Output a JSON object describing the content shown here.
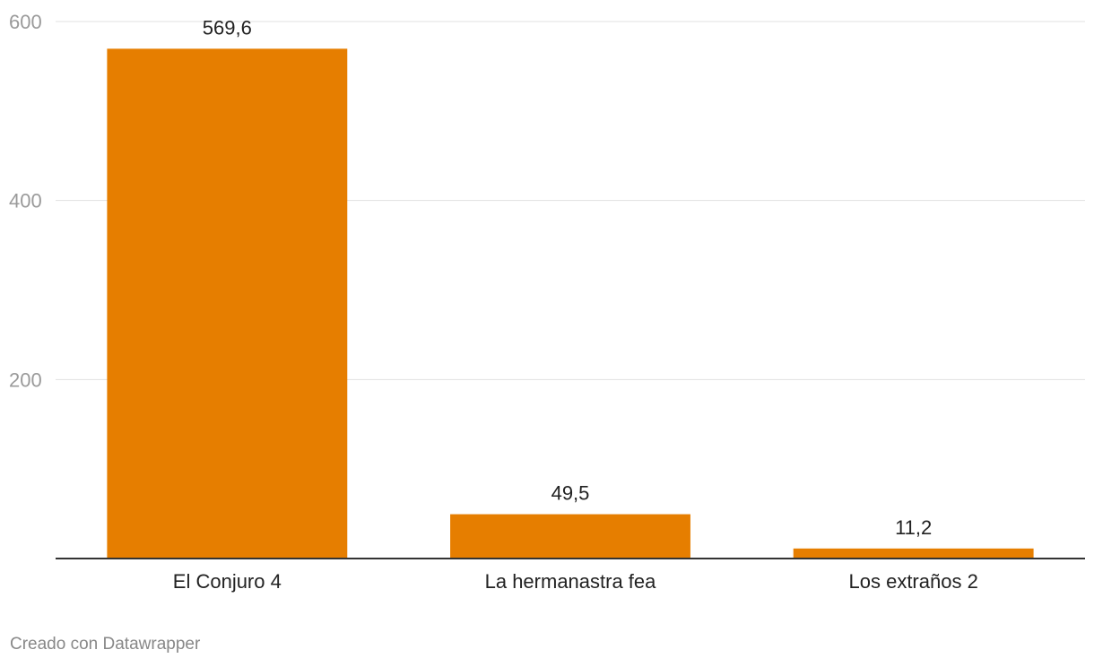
{
  "chart_data": {
    "type": "bar",
    "categories": [
      "El Conjuro 4",
      "La hermanastra fea",
      "Los extraños 2"
    ],
    "values": [
      569.6,
      49.5,
      11.2
    ],
    "value_labels": [
      "569,6",
      "49,5",
      "11,2"
    ],
    "title": "",
    "xlabel": "",
    "ylabel": "",
    "ylim": [
      0,
      600
    ],
    "yticks": [
      200,
      400,
      600
    ],
    "ytick_labels": [
      "200",
      "400",
      "600"
    ],
    "grid": true,
    "bar_color": "#e67e00",
    "grid_color": "#e1e1e1",
    "axis_color": "#333333"
  },
  "footer": {
    "credit": "Creado con Datawrapper"
  }
}
